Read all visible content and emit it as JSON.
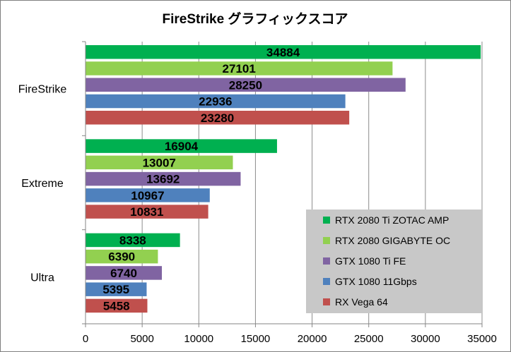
{
  "chart_data": {
    "type": "bar",
    "orientation": "horizontal",
    "title": "FireStrike グラフィックスコア",
    "categories": [
      "FireStrike",
      "Extreme",
      "Ultra"
    ],
    "series": [
      {
        "name": "RTX 2080 Ti ZOTAC AMP",
        "color": "#00b050",
        "values": [
          34884,
          16904,
          8338
        ]
      },
      {
        "name": "RTX 2080 GIGABYTE OC",
        "color": "#92d050",
        "values": [
          27101,
          13007,
          6390
        ]
      },
      {
        "name": "GTX 1080 Ti FE",
        "color": "#8064a2",
        "values": [
          28250,
          13692,
          6740
        ]
      },
      {
        "name": "GTX 1080 11Gbps",
        "color": "#4f81bd",
        "values": [
          22936,
          10967,
          5395
        ]
      },
      {
        "name": "RX Vega 64",
        "color": "#c0504d",
        "values": [
          23280,
          10831,
          5458
        ]
      }
    ],
    "xlim": [
      0,
      35000
    ],
    "xticks": [
      0,
      5000,
      10000,
      15000,
      20000,
      25000,
      30000,
      35000
    ],
    "xlabel": "",
    "ylabel": "",
    "grid": true,
    "legend_position": "bottom-right",
    "legend_background": "#c8c8c8",
    "data_labels": true
  }
}
